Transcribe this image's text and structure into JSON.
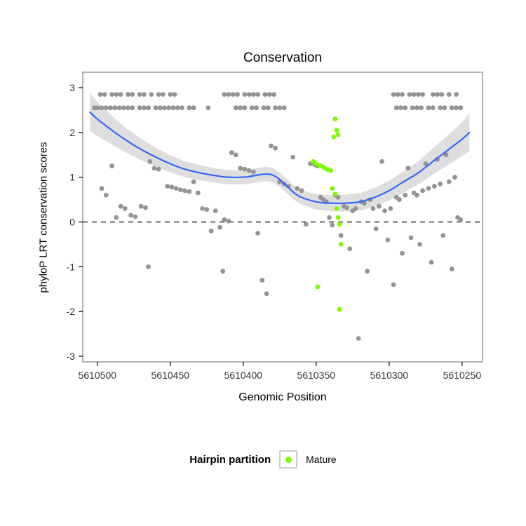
{
  "title": "Conservation",
  "legend": {
    "title": "Hairpin partition",
    "items": [
      {
        "label": "Mature",
        "color": "#7CFC00"
      }
    ]
  },
  "colors": {
    "other_points": "#949494",
    "mature_points": "#7CFC00",
    "smooth_line": "#3366FF",
    "ribbon": "#999999",
    "zero_line": "#000000",
    "panel_border": "#a0a0a0",
    "tick_label": "#333333"
  },
  "chart_data": {
    "type": "scatter",
    "title": "Conservation",
    "xlabel": "Genomic Position",
    "ylabel": "phyloP LRT conservation scores",
    "x_reversed": true,
    "xlim": [
      5610510,
      5610236
    ],
    "ylim": [
      -3.125,
      3.345
    ],
    "x_ticks": [
      5610500,
      5610450,
      5610400,
      5610350,
      5610300,
      5610250
    ],
    "y_ticks": [
      -3,
      -2,
      -1,
      0,
      1,
      2,
      3
    ],
    "zero_line_y": 0,
    "grid": false,
    "legend_position": "bottom",
    "series": [
      {
        "name": "other",
        "color": "#949494",
        "points": [
          [
            5610502,
            2.55
          ],
          [
            5610500,
            2.55
          ],
          [
            5610497,
            2.55
          ],
          [
            5610494,
            2.55
          ],
          [
            5610491,
            2.55
          ],
          [
            5610488,
            2.55
          ],
          [
            5610485,
            2.55
          ],
          [
            5610482,
            2.55
          ],
          [
            5610479,
            2.55
          ],
          [
            5610476,
            2.55
          ],
          [
            5610471,
            2.55
          ],
          [
            5610468,
            2.55
          ],
          [
            5610465,
            2.55
          ],
          [
            5610460,
            2.55
          ],
          [
            5610457,
            2.55
          ],
          [
            5610454,
            2.55
          ],
          [
            5610451,
            2.55
          ],
          [
            5610448,
            2.55
          ],
          [
            5610445,
            2.55
          ],
          [
            5610442,
            2.55
          ],
          [
            5610498,
            2.85
          ],
          [
            5610495,
            2.85
          ],
          [
            5610490,
            2.85
          ],
          [
            5610487,
            2.85
          ],
          [
            5610484,
            2.85
          ],
          [
            5610479,
            2.85
          ],
          [
            5610476,
            2.85
          ],
          [
            5610471,
            2.85
          ],
          [
            5610468,
            2.85
          ],
          [
            5610463,
            2.85
          ],
          [
            5610458,
            2.85
          ],
          [
            5610455,
            2.85
          ],
          [
            5610450,
            2.85
          ],
          [
            5610447,
            2.85
          ],
          [
            5610437,
            2.55
          ],
          [
            5610434,
            2.55
          ],
          [
            5610413,
            2.85
          ],
          [
            5610410,
            2.85
          ],
          [
            5610407,
            2.85
          ],
          [
            5610404,
            2.85
          ],
          [
            5610399,
            2.85
          ],
          [
            5610396,
            2.85
          ],
          [
            5610393,
            2.85
          ],
          [
            5610390,
            2.85
          ],
          [
            5610385,
            2.85
          ],
          [
            5610382,
            2.85
          ],
          [
            5610379,
            2.85
          ],
          [
            5610424,
            2.55
          ],
          [
            5610405,
            2.55
          ],
          [
            5610402,
            2.55
          ],
          [
            5610399,
            2.55
          ],
          [
            5610394,
            2.55
          ],
          [
            5610391,
            2.55
          ],
          [
            5610386,
            2.55
          ],
          [
            5610383,
            2.55
          ],
          [
            5610378,
            2.55
          ],
          [
            5610375,
            2.55
          ],
          [
            5610372,
            2.55
          ],
          [
            5610297,
            2.85
          ],
          [
            5610294,
            2.85
          ],
          [
            5610291,
            2.85
          ],
          [
            5610286,
            2.85
          ],
          [
            5610283,
            2.85
          ],
          [
            5610280,
            2.85
          ],
          [
            5610277,
            2.85
          ],
          [
            5610270,
            2.85
          ],
          [
            5610267,
            2.85
          ],
          [
            5610264,
            2.85
          ],
          [
            5610259,
            2.85
          ],
          [
            5610254,
            2.85
          ],
          [
            5610295,
            2.55
          ],
          [
            5610292,
            2.55
          ],
          [
            5610289,
            2.55
          ],
          [
            5610284,
            2.55
          ],
          [
            5610281,
            2.55
          ],
          [
            5610278,
            2.55
          ],
          [
            5610273,
            2.55
          ],
          [
            5610270,
            2.55
          ],
          [
            5610265,
            2.55
          ],
          [
            5610262,
            2.55
          ],
          [
            5610257,
            2.55
          ],
          [
            5610254,
            2.55
          ],
          [
            5610251,
            2.55
          ],
          [
            5610497,
            0.75
          ],
          [
            5610494,
            0.6
          ],
          [
            5610490,
            1.25
          ],
          [
            5610487,
            0.1
          ],
          [
            5610484,
            0.35
          ],
          [
            5610481,
            0.3
          ],
          [
            5610477,
            0.15
          ],
          [
            5610474,
            0.12
          ],
          [
            5610470,
            0.35
          ],
          [
            5610467,
            0.32
          ],
          [
            5610465,
            -1.0
          ],
          [
            5610464,
            1.35
          ],
          [
            5610461,
            1.2
          ],
          [
            5610458,
            1.18
          ],
          [
            5610452,
            0.8
          ],
          [
            5610449,
            0.78
          ],
          [
            5610446,
            0.75
          ],
          [
            5610443,
            0.72
          ],
          [
            5610440,
            0.7
          ],
          [
            5610437,
            0.68
          ],
          [
            5610434,
            0.9
          ],
          [
            5610431,
            0.65
          ],
          [
            5610428,
            0.3
          ],
          [
            5610425,
            0.28
          ],
          [
            5610422,
            -0.2
          ],
          [
            5610419,
            0.25
          ],
          [
            5610416,
            -0.12
          ],
          [
            5610413,
            0.05
          ],
          [
            5610410,
            0.02
          ],
          [
            5610408,
            1.55
          ],
          [
            5610405,
            1.5
          ],
          [
            5610402,
            1.2
          ],
          [
            5610399,
            1.18
          ],
          [
            5610396,
            1.15
          ],
          [
            5610393,
            1.12
          ],
          [
            5610390,
            -0.25
          ],
          [
            5610387,
            -1.3
          ],
          [
            5610384,
            -1.6
          ],
          [
            5610414,
            -1.1
          ],
          [
            5610381,
            1.7
          ],
          [
            5610378,
            1.65
          ],
          [
            5610375,
            0.9
          ],
          [
            5610372,
            0.85
          ],
          [
            5610369,
            0.8
          ],
          [
            5610366,
            1.45
          ],
          [
            5610363,
            0.75
          ],
          [
            5610360,
            0.7
          ],
          [
            5610357,
            -0.05
          ],
          [
            5610354,
            1.3
          ],
          [
            5610351,
            1.28
          ],
          [
            5610349,
            1.25
          ],
          [
            5610347,
            0.55
          ],
          [
            5610345,
            0.5
          ],
          [
            5610343,
            0.45
          ],
          [
            5610341,
            0.1
          ],
          [
            5610339,
            -0.07
          ],
          [
            5610337,
            0.6
          ],
          [
            5610335,
            0.55
          ],
          [
            5610333,
            -0.3
          ],
          [
            5610331,
            0.35
          ],
          [
            5610329,
            0.32
          ],
          [
            5610327,
            -0.6
          ],
          [
            5610325,
            0.25
          ],
          [
            5610323,
            0.3
          ],
          [
            5610321,
            -2.6
          ],
          [
            5610319,
            0.45
          ],
          [
            5610317,
            0.42
          ],
          [
            5610315,
            -1.1
          ],
          [
            5610313,
            0.5
          ],
          [
            5610311,
            0.3
          ],
          [
            5610309,
            -0.15
          ],
          [
            5610307,
            0.35
          ],
          [
            5610305,
            1.35
          ],
          [
            5610303,
            0.25
          ],
          [
            5610301,
            -0.4
          ],
          [
            5610299,
            0.3
          ],
          [
            5610297,
            -1.4
          ],
          [
            5610295,
            0.55
          ],
          [
            5610293,
            0.5
          ],
          [
            5610291,
            -0.7
          ],
          [
            5610289,
            0.6
          ],
          [
            5610287,
            1.2
          ],
          [
            5610285,
            -0.35
          ],
          [
            5610283,
            0.65
          ],
          [
            5610281,
            0.6
          ],
          [
            5610279,
            -0.5
          ],
          [
            5610277,
            0.7
          ],
          [
            5610275,
            1.3
          ],
          [
            5610273,
            0.75
          ],
          [
            5610271,
            -0.9
          ],
          [
            5610269,
            0.8
          ],
          [
            5610267,
            1.4
          ],
          [
            5610265,
            0.85
          ],
          [
            5610263,
            -0.3
          ],
          [
            5610261,
            1.5
          ],
          [
            5610259,
            0.9
          ],
          [
            5610257,
            -1.05
          ],
          [
            5610255,
            1.0
          ],
          [
            5610253,
            0.1
          ],
          [
            5610251,
            0.05
          ]
        ]
      },
      {
        "name": "Mature",
        "color": "#7CFC00",
        "points": [
          [
            5610337,
            2.3
          ],
          [
            5610336,
            2.05
          ],
          [
            5610335,
            1.95
          ],
          [
            5610338,
            1.9
          ],
          [
            5610352,
            1.35
          ],
          [
            5610350,
            1.3
          ],
          [
            5610348,
            1.27
          ],
          [
            5610346,
            1.24
          ],
          [
            5610344,
            1.2
          ],
          [
            5610342,
            1.17
          ],
          [
            5610340,
            1.15
          ],
          [
            5610339,
            0.75
          ],
          [
            5610337,
            0.62
          ],
          [
            5610336,
            0.3
          ],
          [
            5610335,
            0.1
          ],
          [
            5610334,
            -0.05
          ],
          [
            5610333,
            -0.5
          ],
          [
            5610349,
            -1.45
          ],
          [
            5610334,
            -1.95
          ]
        ]
      }
    ],
    "smooth_line": {
      "color": "#3366FF",
      "points": [
        [
          5610505,
          2.45
        ],
        [
          5610500,
          2.3
        ],
        [
          5610490,
          2.05
        ],
        [
          5610480,
          1.82
        ],
        [
          5610470,
          1.62
        ],
        [
          5610460,
          1.45
        ],
        [
          5610450,
          1.3
        ],
        [
          5610440,
          1.18
        ],
        [
          5610430,
          1.1
        ],
        [
          5610420,
          1.04
        ],
        [
          5610410,
          1.0
        ],
        [
          5610400,
          1.0
        ],
        [
          5610395,
          1.02
        ],
        [
          5610390,
          1.05
        ],
        [
          5610385,
          1.07
        ],
        [
          5610380,
          1.05
        ],
        [
          5610375,
          0.95
        ],
        [
          5610370,
          0.8
        ],
        [
          5610365,
          0.65
        ],
        [
          5610360,
          0.55
        ],
        [
          5610350,
          0.45
        ],
        [
          5610340,
          0.42
        ],
        [
          5610330,
          0.42
        ],
        [
          5610320,
          0.45
        ],
        [
          5610310,
          0.55
        ],
        [
          5610300,
          0.7
        ],
        [
          5610290,
          0.9
        ],
        [
          5610280,
          1.1
        ],
        [
          5610270,
          1.35
        ],
        [
          5610260,
          1.6
        ],
        [
          5610250,
          1.85
        ],
        [
          5610245,
          2.0
        ]
      ]
    },
    "ribbon": {
      "upper": [
        [
          5610505,
          2.87
        ],
        [
          5610500,
          2.68
        ],
        [
          5610490,
          2.37
        ],
        [
          5610480,
          2.09
        ],
        [
          5610470,
          1.86
        ],
        [
          5610460,
          1.66
        ],
        [
          5610450,
          1.49
        ],
        [
          5610440,
          1.36
        ],
        [
          5610430,
          1.27
        ],
        [
          5610420,
          1.2
        ],
        [
          5610410,
          1.16
        ],
        [
          5610400,
          1.16
        ],
        [
          5610395,
          1.18
        ],
        [
          5610390,
          1.21
        ],
        [
          5610385,
          1.23
        ],
        [
          5610380,
          1.21
        ],
        [
          5610375,
          1.11
        ],
        [
          5610370,
          0.96
        ],
        [
          5610365,
          0.81
        ],
        [
          5610360,
          0.71
        ],
        [
          5610350,
          0.62
        ],
        [
          5610340,
          0.6
        ],
        [
          5610330,
          0.61
        ],
        [
          5610320,
          0.65
        ],
        [
          5610310,
          0.76
        ],
        [
          5610300,
          0.92
        ],
        [
          5610290,
          1.14
        ],
        [
          5610280,
          1.36
        ],
        [
          5610270,
          1.64
        ],
        [
          5610260,
          1.93
        ],
        [
          5610250,
          2.23
        ],
        [
          5610245,
          2.42
        ]
      ],
      "lower": [
        [
          5610505,
          2.03
        ],
        [
          5610500,
          1.92
        ],
        [
          5610490,
          1.73
        ],
        [
          5610480,
          1.55
        ],
        [
          5610470,
          1.38
        ],
        [
          5610460,
          1.24
        ],
        [
          5610450,
          1.11
        ],
        [
          5610440,
          1.0
        ],
        [
          5610430,
          0.93
        ],
        [
          5610420,
          0.88
        ],
        [
          5610410,
          0.84
        ],
        [
          5610400,
          0.84
        ],
        [
          5610395,
          0.86
        ],
        [
          5610390,
          0.89
        ],
        [
          5610385,
          0.91
        ],
        [
          5610380,
          0.89
        ],
        [
          5610375,
          0.79
        ],
        [
          5610370,
          0.64
        ],
        [
          5610365,
          0.49
        ],
        [
          5610360,
          0.39
        ],
        [
          5610350,
          0.28
        ],
        [
          5610340,
          0.24
        ],
        [
          5610330,
          0.23
        ],
        [
          5610320,
          0.25
        ],
        [
          5610310,
          0.34
        ],
        [
          5610300,
          0.48
        ],
        [
          5610290,
          0.66
        ],
        [
          5610280,
          0.84
        ],
        [
          5610270,
          1.06
        ],
        [
          5610260,
          1.27
        ],
        [
          5610250,
          1.47
        ],
        [
          5610245,
          1.58
        ]
      ]
    }
  }
}
